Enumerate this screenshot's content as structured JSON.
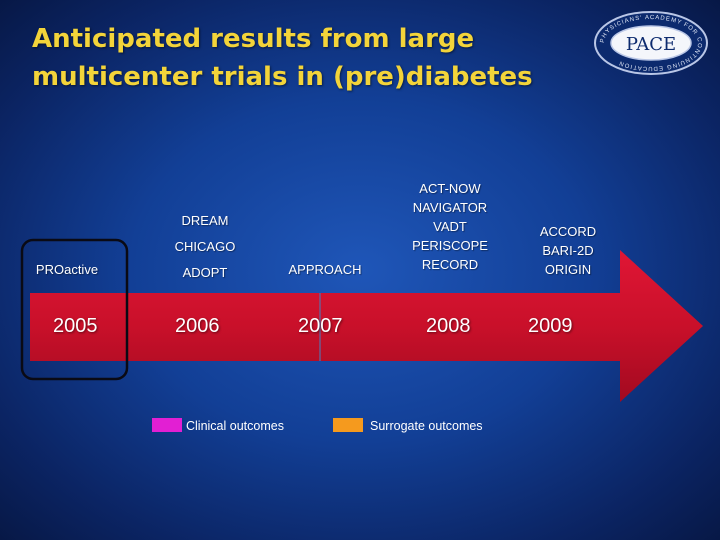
{
  "slide": {
    "title": "Anticipated results from large multicenter trials in (pre)diabetes"
  },
  "logo": {
    "text": "PACE",
    "ring_text": "PHYSICIANS' ACADEMY FOR CONTINUING EDUCATION"
  },
  "timeline": {
    "years": [
      "2005",
      "2006",
      "2007",
      "2008",
      "2009"
    ],
    "trials": [
      {
        "year": "2005",
        "names": [
          "PROactive"
        ]
      },
      {
        "year": "2006",
        "names": [
          "DREAM",
          "CHICAGO",
          "ADOPT"
        ]
      },
      {
        "year": "2007",
        "names": [
          "APPROACH"
        ]
      },
      {
        "year": "2008",
        "names": [
          "ACT-NOW",
          "NAVIGATOR",
          "VADT",
          "PERISCOPE",
          "RECORD"
        ]
      },
      {
        "year": "2009",
        "names": [
          "ACCORD",
          "BARI-2D",
          "ORIGIN"
        ]
      }
    ]
  },
  "legend": [
    {
      "label": "Clinical outcomes",
      "color": "#e21fd3"
    },
    {
      "label": "Surrogate outcomes",
      "color": "#f59a1e"
    }
  ],
  "colors": {
    "title": "#f3d43a",
    "arrow": "#c9102a",
    "highlight_border": "#0a0a14"
  }
}
